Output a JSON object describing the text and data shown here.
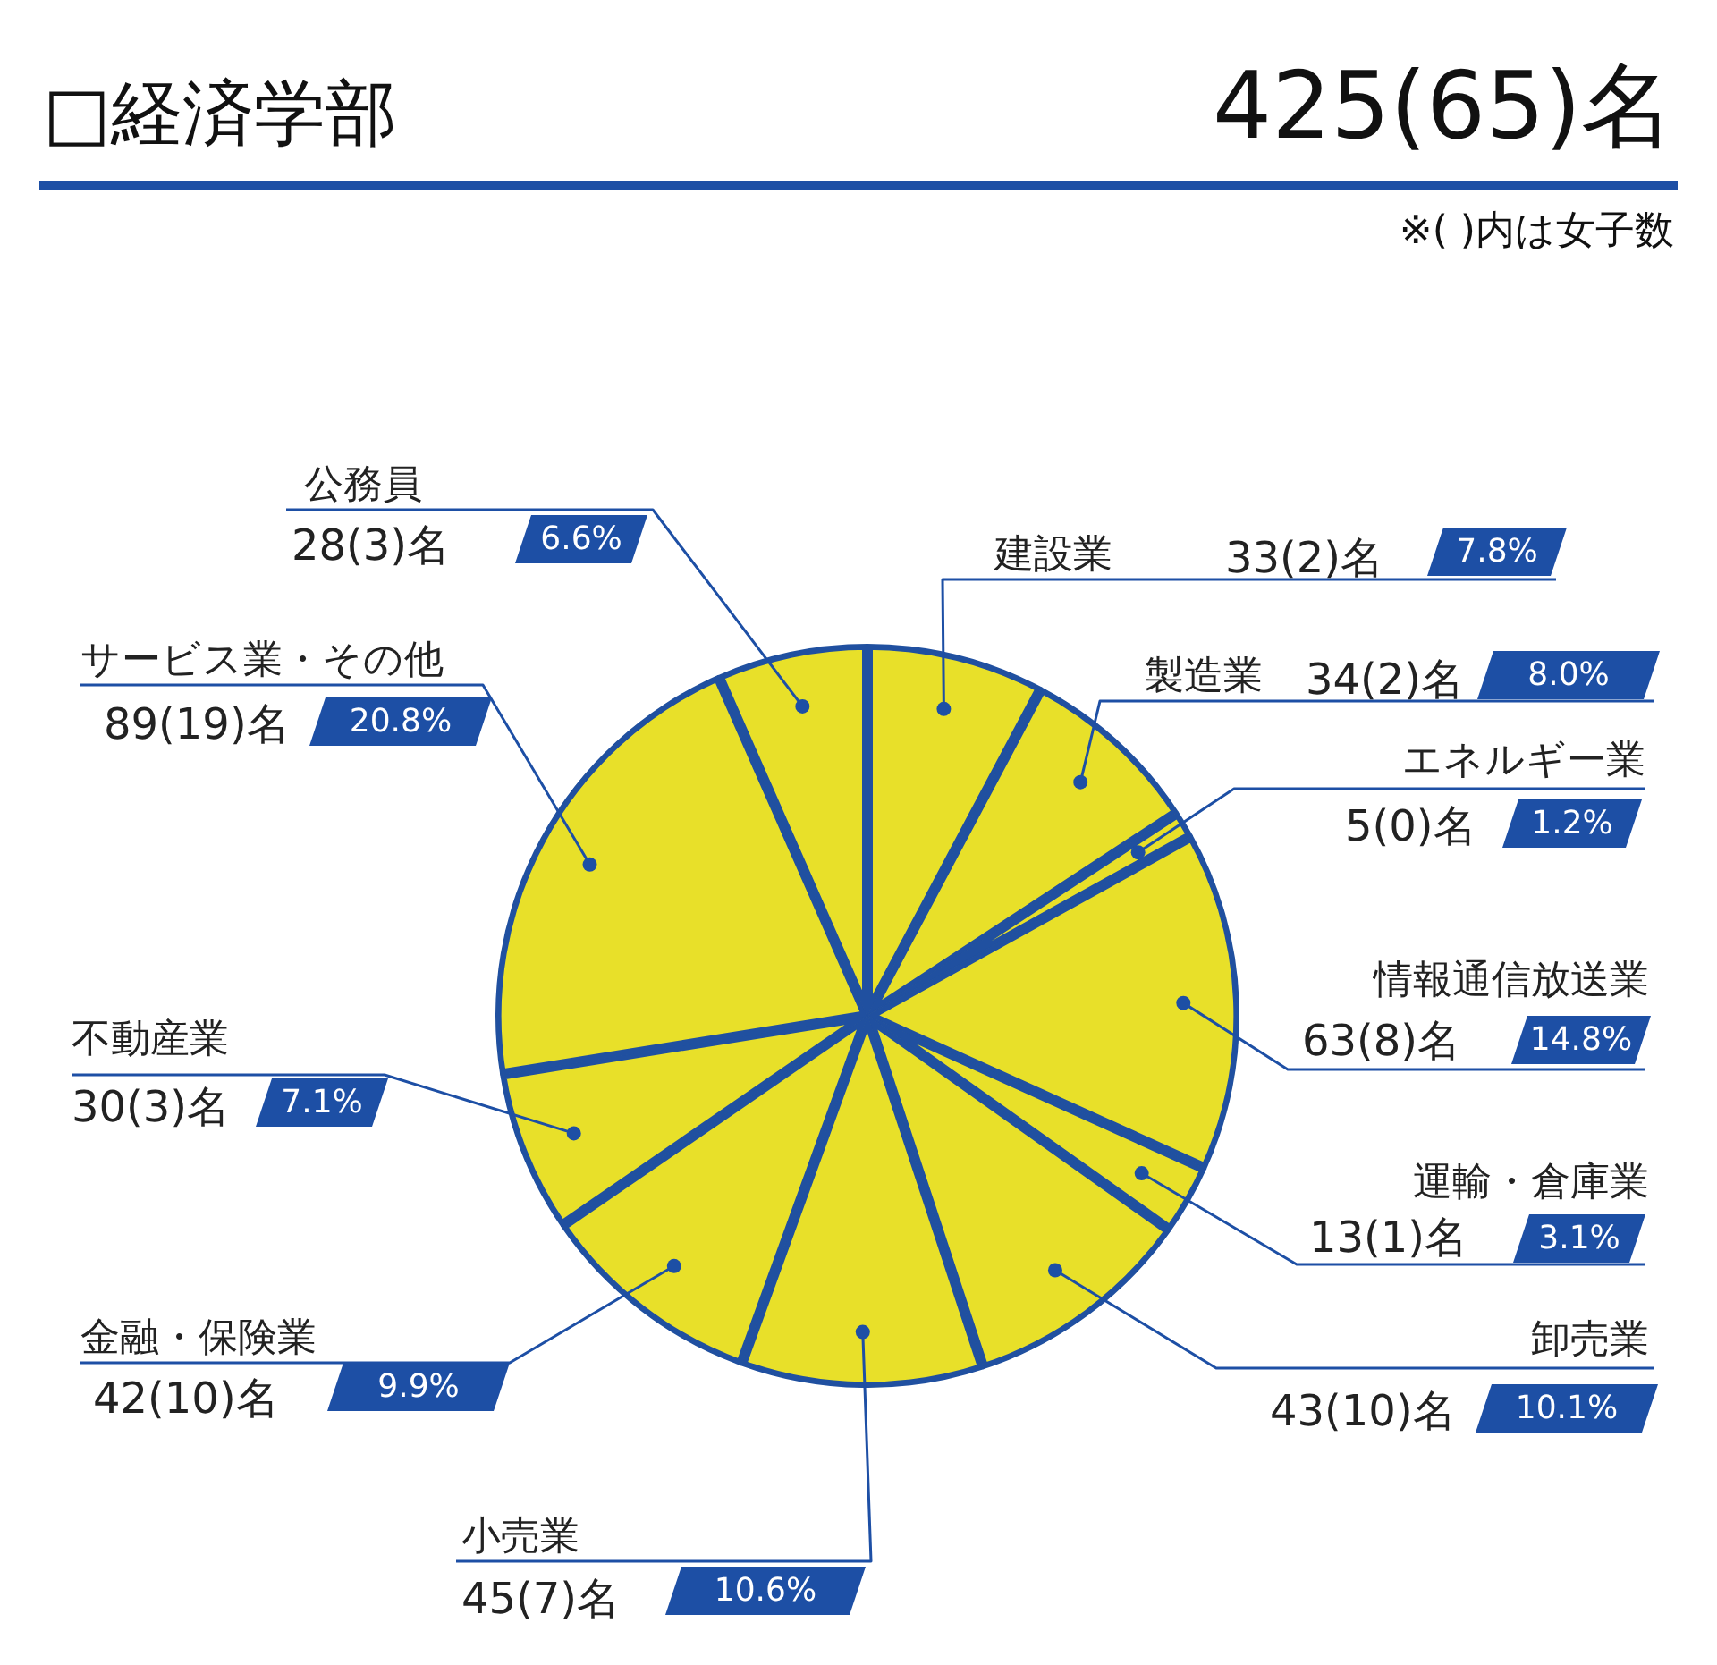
{
  "chart_data": {
    "type": "pie",
    "title": "□経済学部",
    "subtitle": "425(65)名",
    "categories": [
      "建設業",
      "製造業",
      "エネルギー業",
      "情報通信放送業",
      "運輸・倉庫業",
      "卸売業",
      "小売業",
      "金融・保険業",
      "不動産業",
      "サービス業・その他",
      "公務員"
    ],
    "values": [
      33,
      34,
      5,
      63,
      13,
      43,
      45,
      42,
      30,
      89,
      28
    ],
    "colors": [
      "#e8e029",
      "#e8e029",
      "#e8e029",
      "#e8e029",
      "#e8e029",
      "#e8e029",
      "#e8e029",
      "#e8e029",
      "#e8e029",
      "#e8e029",
      "#e8e029"
    ],
    "value_labels": [
      "33(2)名",
      "34(2)名",
      "5(0)名",
      "63(8)名",
      "13(1)名",
      "43(10)名",
      "45(7)名",
      "42(10)名",
      "30(3)名",
      "89(19)名",
      "28(3)名"
    ],
    "annotations": [
      "※( )内は女子数",
      "7.8%",
      "8.0%",
      "1.2%",
      "14.8%",
      "3.1%",
      "10.1%",
      "10.6%",
      "9.9%",
      "7.1%",
      "20.8%",
      "6.6%"
    ]
  }
}
